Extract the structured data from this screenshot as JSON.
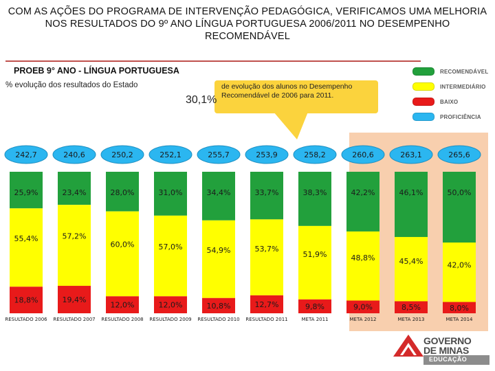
{
  "title": "COM AS AÇÕES DO PROGRAMA DE INTERVENÇÃO PEDAGÓGICA, VERIFICAMOS UMA MELHORIA NOS RESULTADOS DO 9º ANO LÍNGUA PORTUGUESA 2006/2011 NO DESEMPENHO RECOMENDÁVEL",
  "subhead": "PROEB 9° ANO - LÍNGUA PORTUGUESA",
  "subtitle": "% evolução dos resultados do Estado",
  "callout": {
    "percent": "30,1%",
    "text": "de evolução dos alunos no Desempenho Recomendável de 2006 para 2011."
  },
  "legend": [
    {
      "label": "RECOMENDÁVEL",
      "color": "#22a03c"
    },
    {
      "label": "INTERMEDIÁRIO",
      "color": "#ffff00"
    },
    {
      "label": "BAIXO",
      "color": "#e81a1a"
    },
    {
      "label": "PROFICIÊNCIA",
      "color": "#2bb6f0"
    }
  ],
  "logo": {
    "name_line1": "GOVERNO",
    "name_line2": "DE MINAS",
    "sub": "EDUCAÇÃO"
  },
  "chart_data": {
    "type": "bar",
    "stacked": true,
    "percent_stacked": true,
    "title": "PROEB 9° ANO - LÍNGUA PORTUGUESA",
    "categories": [
      "RESULTADO 2006",
      "RESULTADO 2007",
      "RESULTADO 2008",
      "RESULTADO 2009",
      "RESULTADO 2010",
      "RESULTADO 2011",
      "META 2011",
      "META 2012",
      "META 2013",
      "META 2014"
    ],
    "series": [
      {
        "name": "BAIXO",
        "color": "#e81a1a",
        "values": [
          18.8,
          19.4,
          12.0,
          12.0,
          10.8,
          12.7,
          9.8,
          9.0,
          8.5,
          8.0
        ],
        "labels": [
          "18,8%",
          "19,4%",
          "12,0%",
          "12,0%",
          "10,8%",
          "12,7%",
          "9,8%",
          "9,0%",
          "8,5%",
          "8,0%"
        ]
      },
      {
        "name": "INTERMEDIÁRIO",
        "color": "#ffff00",
        "values": [
          55.4,
          57.2,
          60.0,
          57.0,
          54.9,
          53.7,
          51.9,
          48.8,
          45.4,
          42.0
        ],
        "labels": [
          "55,4%",
          "57,2%",
          "60,0%",
          "57,0%",
          "54,9%",
          "53,7%",
          "51,9%",
          "48,8%",
          "45,4%",
          "42,0%"
        ]
      },
      {
        "name": "RECOMENDÁVEL",
        "color": "#22a03c",
        "values": [
          25.9,
          23.4,
          28.0,
          31.0,
          34.4,
          33.7,
          38.3,
          42.2,
          46.1,
          50.0
        ],
        "labels": [
          "25,9%",
          "23,4%",
          "28,0%",
          "31,0%",
          "34,4%",
          "33,7%",
          "38,3%",
          "42,2%",
          "46,1%",
          "50,0%"
        ]
      }
    ],
    "proficiency": {
      "name": "PROFICIÊNCIA",
      "color": "#2bb6f0",
      "values": [
        242.7,
        240.6,
        250.2,
        252.1,
        255.7,
        253.9,
        258.2,
        260.6,
        263.1,
        265.6
      ],
      "labels": [
        "242,7",
        "240,6",
        "250,2",
        "252,1",
        "255,7",
        "253,9",
        "258,2",
        "260,6",
        "263,1",
        "265,6"
      ]
    },
    "highlighted_categories": [
      "META 2012",
      "META 2013",
      "META 2014"
    ],
    "ylim": [
      0,
      100
    ]
  }
}
